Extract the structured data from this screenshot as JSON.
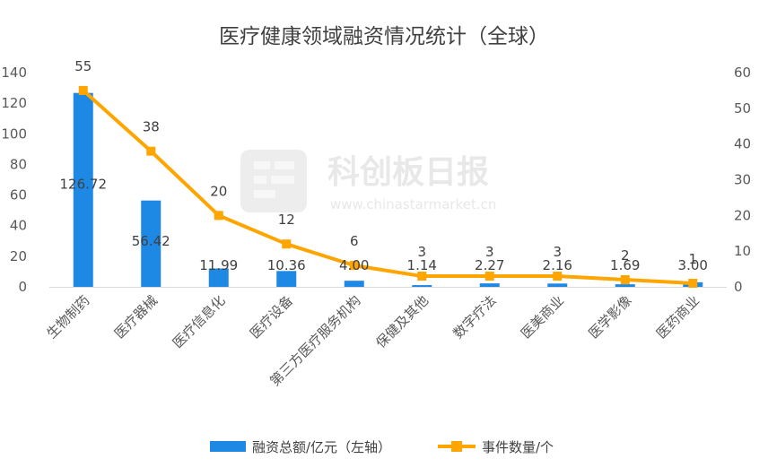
{
  "chart_data": {
    "type": "bar+line",
    "title": "医疗健康领域融资情况统计（全球）",
    "categories": [
      "生物制药",
      "医疗器械",
      "医疗信息化",
      "医疗设备",
      "第三方医疗服务机构",
      "保健及其他",
      "数字疗法",
      "医美商业",
      "医学影像",
      "医药商业"
    ],
    "series": [
      {
        "name": "融资总额/亿元（左轴）",
        "type": "bar",
        "axis": "left",
        "color": "#1E88E5",
        "values": [
          126.72,
          56.42,
          11.99,
          10.36,
          4.0,
          1.14,
          2.27,
          2.16,
          1.69,
          3.0
        ],
        "labels": [
          "126.72",
          "56.42",
          "11.99",
          "10.36",
          "4.00",
          "1.14",
          "2.27",
          "2.16",
          "1.69",
          "3.00"
        ]
      },
      {
        "name": "事件数量/个",
        "type": "line",
        "axis": "right",
        "color": "#FFA500",
        "values": [
          55,
          38,
          20,
          12,
          6,
          3,
          3,
          3,
          2,
          1
        ],
        "labels": [
          "55",
          "38",
          "20",
          "12",
          "6",
          "3",
          "3",
          "3",
          "2",
          "1"
        ]
      }
    ],
    "y_left": {
      "min": 0,
      "max": 140,
      "ticks": [
        "0",
        "20",
        "40",
        "60",
        "80",
        "100",
        "120",
        "140"
      ]
    },
    "y_right": {
      "min": 0,
      "max": 60,
      "ticks": [
        "0",
        "10",
        "20",
        "30",
        "40",
        "50",
        "60"
      ]
    },
    "grid": false,
    "legend_position": "bottom"
  },
  "watermark": {
    "text": "科创板日报",
    "url": "www.chinastarmarket.cn"
  }
}
